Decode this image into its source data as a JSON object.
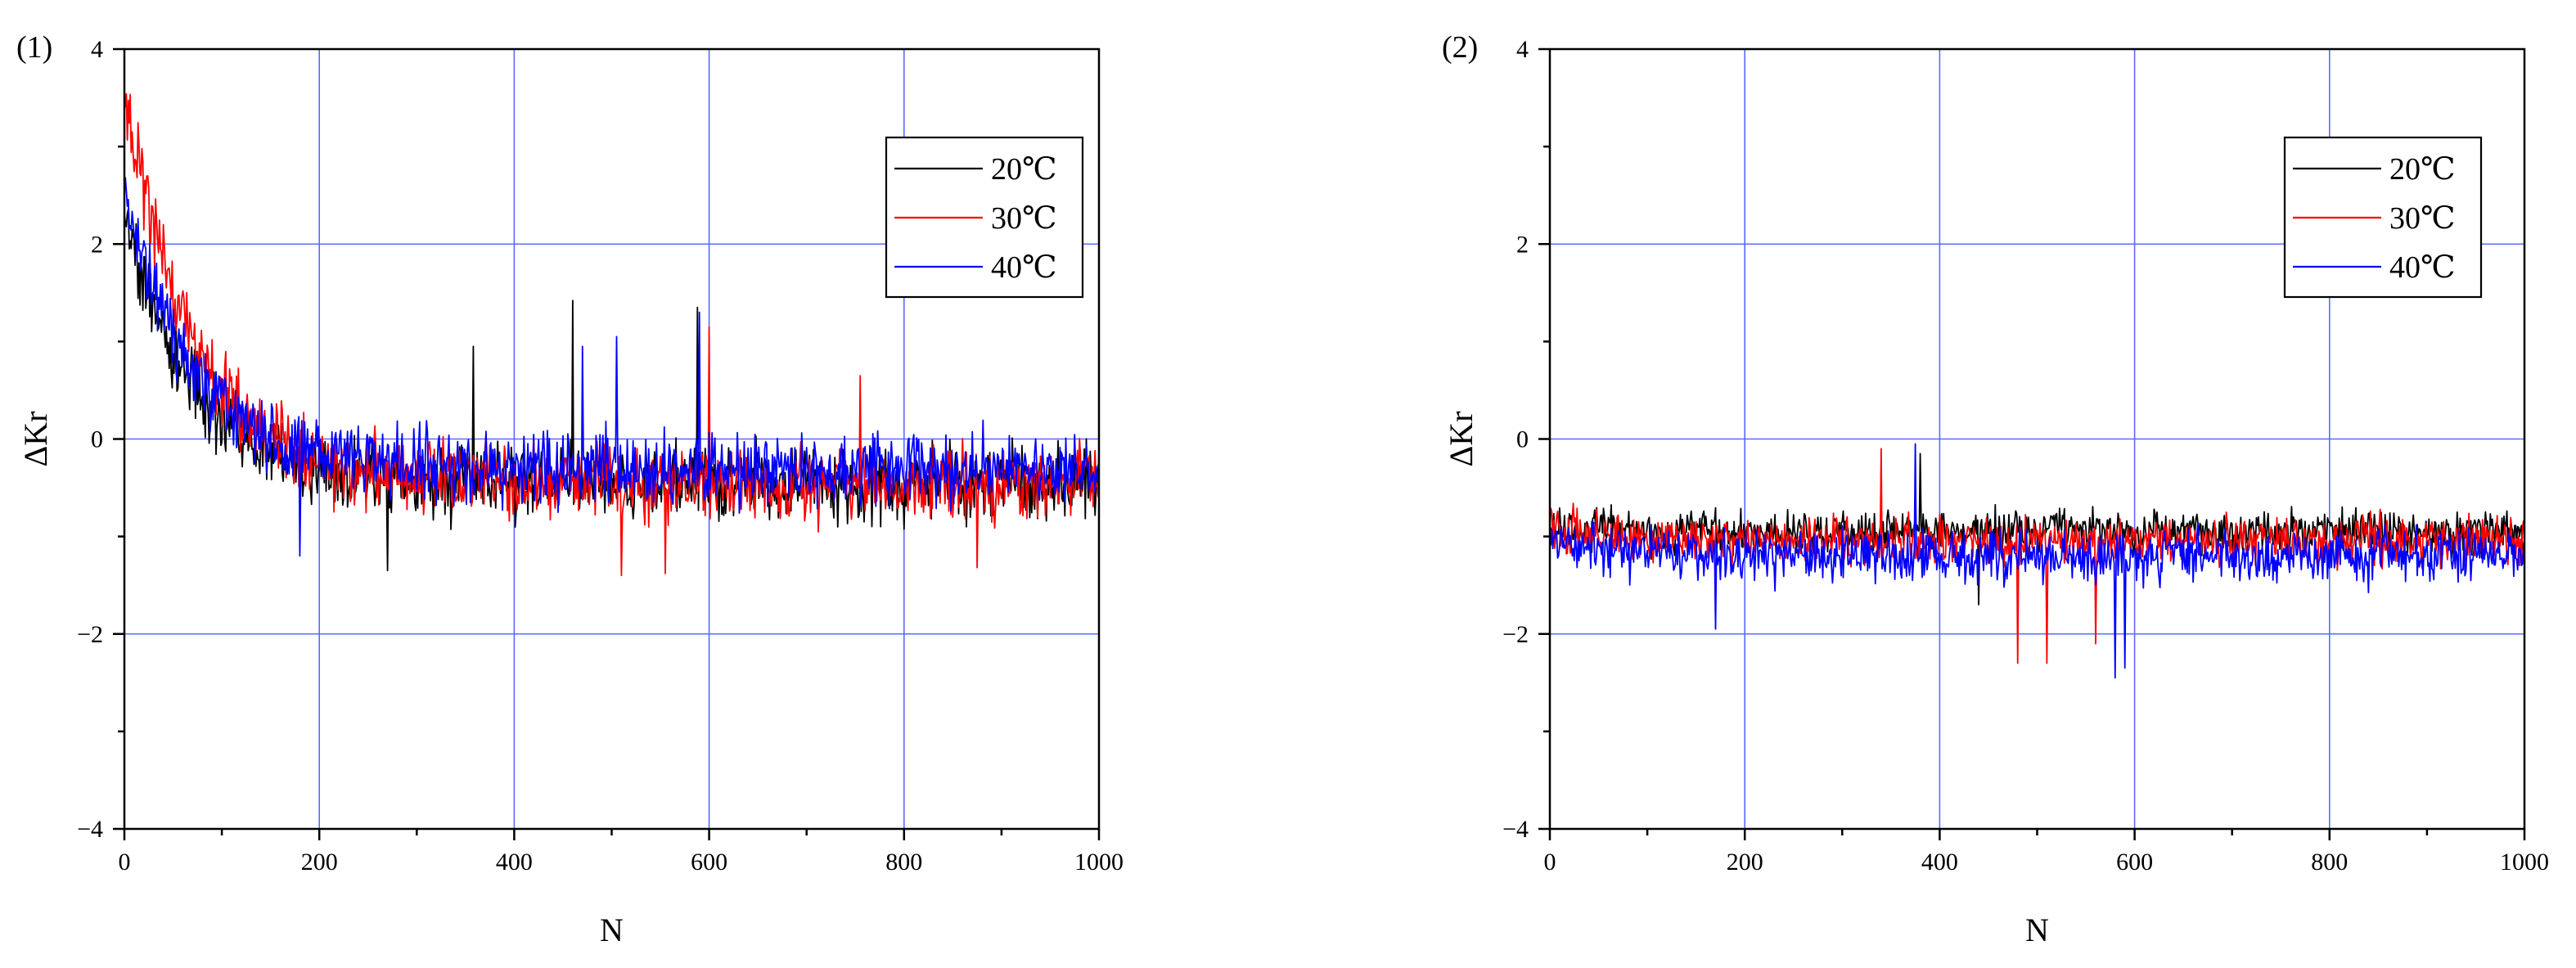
{
  "chart_data": [
    {
      "type": "line",
      "panel_label": "(1)",
      "xlabel": "N",
      "ylabel": "ΔKr",
      "xlim": [
        0,
        1000
      ],
      "ylim": [
        -4,
        4
      ],
      "xticks": [
        "0",
        "200",
        "400",
        "600",
        "800",
        "1000"
      ],
      "yticks": [
        "−4",
        "−2",
        "0",
        "2",
        "4"
      ],
      "grid": true,
      "legend_position": "top-right",
      "series": [
        {
          "name": "20℃",
          "color": "#000000",
          "start": 2.3,
          "decay_to": -0.45,
          "tau": 70,
          "noise": 0.35,
          "spikes": [
            [
              460,
              1.42
            ],
            [
              588,
              1.35
            ],
            [
              270,
              -1.35
            ],
            [
              358,
              0.95
            ]
          ]
        },
        {
          "name": "30℃",
          "color": "#ff0000",
          "start": 3.6,
          "decay_to": -0.45,
          "tau": 70,
          "noise": 0.35,
          "spikes": [
            [
              510,
              -1.4
            ],
            [
              555,
              -1.38
            ],
            [
              755,
              0.65
            ],
            [
              875,
              -1.32
            ],
            [
              600,
              1.15
            ]
          ]
        },
        {
          "name": "40℃",
          "color": "#0000ff",
          "start": 2.5,
          "decay_to": -0.3,
          "tau": 70,
          "noise": 0.33,
          "spikes": [
            [
              590,
              1.3
            ],
            [
              505,
              1.05
            ],
            [
              180,
              -1.2
            ],
            [
              470,
              0.95
            ]
          ]
        }
      ]
    },
    {
      "type": "line",
      "panel_label": "(2)",
      "xlabel": "N",
      "ylabel": "ΔKr",
      "xlim": [
        0,
        1000
      ],
      "ylim": [
        -4,
        4
      ],
      "xticks": [
        "0",
        "200",
        "400",
        "600",
        "800",
        "1000"
      ],
      "yticks": [
        "−4",
        "−2",
        "0",
        "2",
        "4"
      ],
      "grid": true,
      "legend_position": "top-right",
      "series": [
        {
          "name": "20℃",
          "color": "#000000",
          "start": -0.9,
          "decay_to": -0.95,
          "tau": 50,
          "noise": 0.2,
          "spikes": [
            [
              380,
              -0.15
            ],
            [
              440,
              -1.7
            ]
          ]
        },
        {
          "name": "30℃",
          "color": "#ff0000",
          "start": -0.9,
          "decay_to": -1.05,
          "tau": 50,
          "noise": 0.22,
          "spikes": [
            [
              340,
              -0.1
            ],
            [
              480,
              -2.3
            ],
            [
              510,
              -2.3
            ],
            [
              560,
              -2.1
            ]
          ]
        },
        {
          "name": "40℃",
          "color": "#0000ff",
          "start": -1.0,
          "decay_to": -1.2,
          "tau": 50,
          "noise": 0.25,
          "spikes": [
            [
              375,
              -0.05
            ],
            [
              580,
              -2.45
            ],
            [
              590,
              -2.35
            ],
            [
              170,
              -1.95
            ]
          ]
        }
      ]
    }
  ]
}
